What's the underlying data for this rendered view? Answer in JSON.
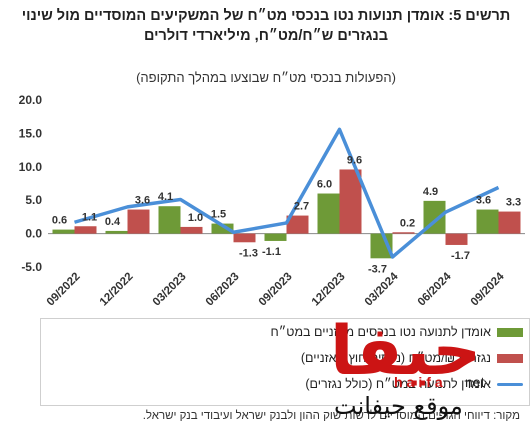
{
  "title": "תרשים 5: אומדן תנועות נטו בנכסי מט״ח של המשקיעים המוסדיים מול שינוי בנגזרים ש״ח/מט״ח, מיליארדי דולרים",
  "subtitle": "(הפעולות בנכסי מט״ח שבוצעו במהלך התקופה)",
  "legend": {
    "green": "אומדן לתנועה נטו בנכסים מאזניים במט״ח",
    "red": "נגזרים ₪/מט״ח (נכסים חוץ מאזניים)",
    "blue": "אומדן לתנועה במט״ח (כולל נגזרים)"
  },
  "source": "מקור: דיווחי הגופים המוסדיים לרשות שוק ההון ולבנק ישראל ועיבודי בנק ישראל.",
  "logo": {
    "arabic": "حيفا",
    "latin": "haifa",
    "net": "net",
    "sub": "موقع حيفانت"
  },
  "colors": {
    "green": "#6e9a37",
    "red": "#c0504d",
    "blue": "#4a8fd8"
  },
  "chart_data": {
    "type": "bar",
    "ylim": [
      -5.0,
      20.0
    ],
    "yticks": [
      "20.0",
      "15.0",
      "10.0",
      "5.0",
      "0.0",
      "-5.0"
    ],
    "tick_labels": [
      "09/2022",
      "12/2022",
      "03/2023",
      "06/2023",
      "09/2023",
      "12/2023",
      "03/2024",
      "06/2024",
      "09/2024"
    ],
    "series": [
      {
        "name": "אומדן לתנועה נטו בנכסים מאזניים במט״ח",
        "kind": "bar",
        "color": "#6e9a37",
        "values": [
          0.6,
          0.4,
          4.1,
          1.5,
          -1.1,
          6.0,
          -3.7,
          4.9,
          3.6
        ]
      },
      {
        "name": "נגזרים ₪/מט״ח (נכסים חוץ מאזניים)",
        "kind": "bar",
        "color": "#c0504d",
        "values": [
          1.1,
          3.6,
          1.0,
          -1.3,
          2.7,
          9.6,
          0.2,
          -1.7,
          3.3
        ]
      },
      {
        "name": "אומדן לתנועה במט״ח (כולל נגזרים)",
        "kind": "line",
        "color": "#4a8fd8",
        "values": [
          1.7,
          4.0,
          5.1,
          0.2,
          1.6,
          15.6,
          -3.5,
          3.2,
          6.9
        ]
      }
    ],
    "data_labels": {
      "green": [
        "0.6",
        "0.4",
        "4.1",
        "1.5",
        "-1.1",
        "6.0",
        "-3.7",
        "4.9",
        "3.6"
      ],
      "red": [
        "1.1",
        "3.6",
        "1.0",
        "-1.3",
        "2.7",
        "9.6",
        "0.2",
        "-1.7",
        "3.3"
      ]
    }
  }
}
